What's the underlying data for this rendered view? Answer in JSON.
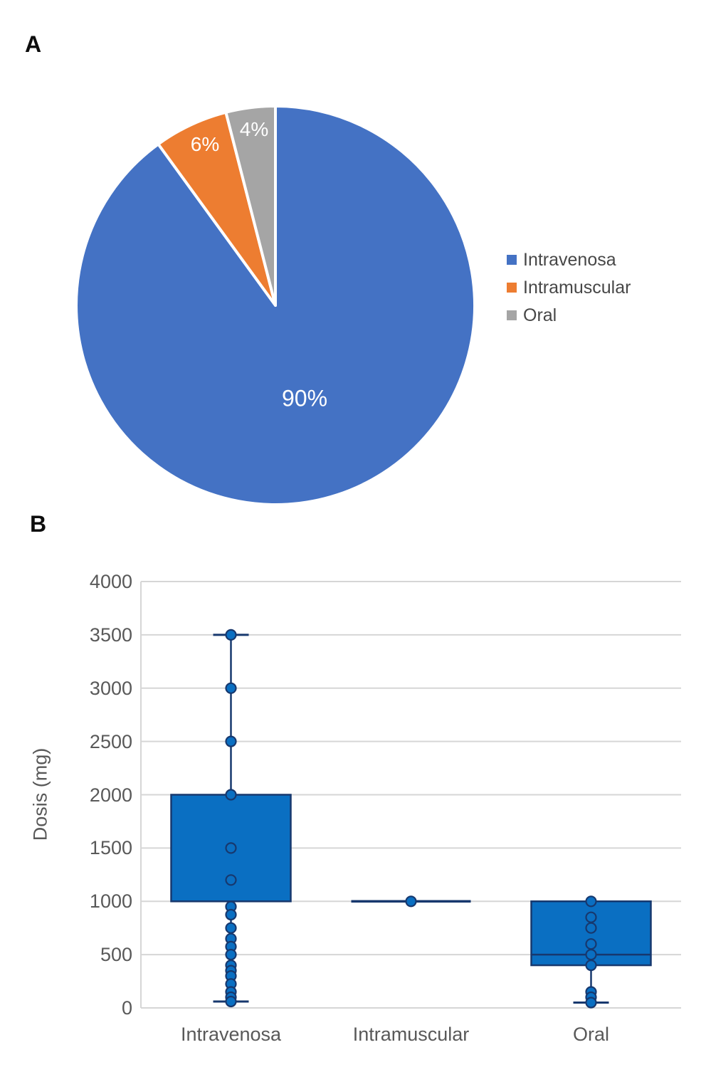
{
  "figure": {
    "panel_a_label": "A",
    "panel_b_label": "B"
  },
  "colors": {
    "pie_blue": "#4472C4",
    "pie_orange": "#ED7D31",
    "pie_gray": "#A5A5A5",
    "box_fill": "#0A6FC2",
    "box_stroke": "#17386E",
    "gridline": "#D6D6D6",
    "axis_text": "#595959",
    "legend_text": "#474747",
    "slice_separator": "#FFFFFF",
    "pie_label_text": "#FFFFFF"
  },
  "chart_data": [
    {
      "type": "pie",
      "panel": "A",
      "categories": [
        "Intravenosa",
        "Intramuscular",
        "Oral"
      ],
      "values": [
        90,
        6,
        4
      ],
      "labels": [
        "90%",
        "6%",
        "4%"
      ],
      "colors": [
        "#4472C4",
        "#ED7D31",
        "#A5A5A5"
      ],
      "legend_position": "right",
      "start_angle_deg": 0,
      "direction": "clockwise"
    },
    {
      "type": "boxplot",
      "panel": "B",
      "title": "",
      "xlabel": "",
      "ylabel": "Dosis (mg)",
      "ylim": [
        0,
        4000
      ],
      "yticks": [
        0,
        500,
        1000,
        1500,
        2000,
        2500,
        3000,
        3500,
        4000
      ],
      "grid": true,
      "categories": [
        "Intravenosa",
        "Intramuscular",
        "Oral"
      ],
      "series": [
        {
          "name": "Intravenosa",
          "min": 60,
          "q1": 1000,
          "median": 1000,
          "q3": 2000,
          "max": 3500,
          "points": [
            3500,
            3000,
            2500,
            2000,
            1500,
            1200,
            950,
            875,
            750,
            650,
            575,
            500,
            400,
            350,
            300,
            225,
            150,
            100,
            60
          ]
        },
        {
          "name": "Intramuscular",
          "min": 1000,
          "q1": 1000,
          "median": 1000,
          "q3": 1000,
          "max": 1000,
          "points": [
            1000
          ]
        },
        {
          "name": "Oral",
          "min": 50,
          "q1": 400,
          "median": 500,
          "q3": 1000,
          "max": 1000,
          "points": [
            1000,
            850,
            750,
            600,
            500,
            400,
            150,
            100,
            50
          ]
        }
      ]
    }
  ]
}
